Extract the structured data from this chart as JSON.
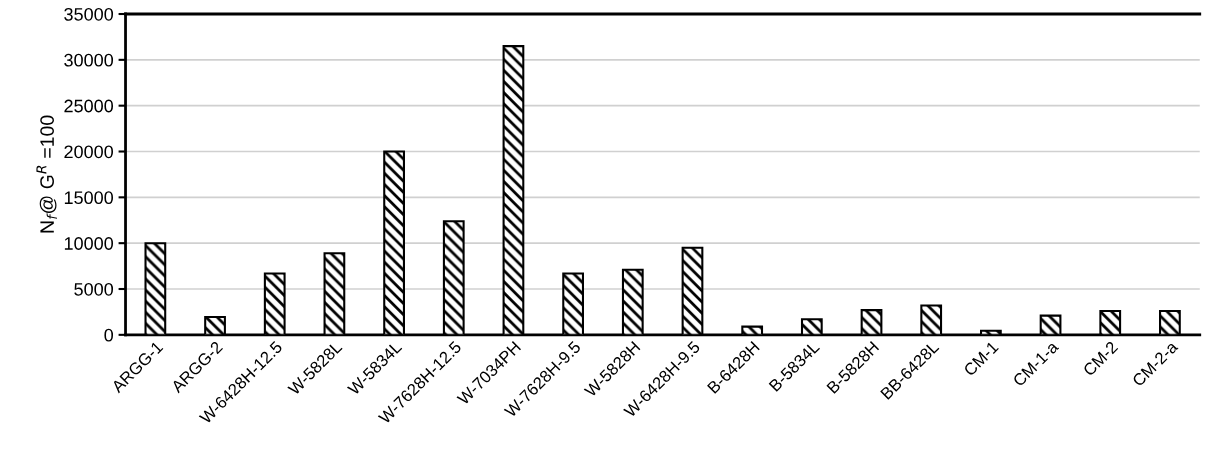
{
  "chart_data": {
    "type": "bar",
    "categories": [
      "ARGG-1",
      "ARGG-2",
      "W-6428H-12.5",
      "W-5828L",
      "W-5834L",
      "W-7628H-12.5",
      "W-7034PH",
      "W-7628H-9.5",
      "W-5828H",
      "W-6428H-9.5",
      "B-6428H",
      "B-5834L",
      "B-5828H",
      "BB-6428L",
      "CM-1",
      "CM-1-a",
      "CM-2",
      "CM-2-a"
    ],
    "values": [
      10000,
      1950,
      6700,
      8900,
      20000,
      12400,
      31500,
      6700,
      7100,
      9500,
      900,
      1700,
      2700,
      3200,
      450,
      2100,
      2600,
      2600
    ],
    "color": "#000000",
    "ylabel": "N$_{f}$@ G$^{R}$ =100",
    "ylim": [
      0,
      35000
    ],
    "yticks": [
      0,
      5000,
      10000,
      15000,
      20000,
      25000,
      30000,
      35000
    ],
    "grid": "y"
  }
}
